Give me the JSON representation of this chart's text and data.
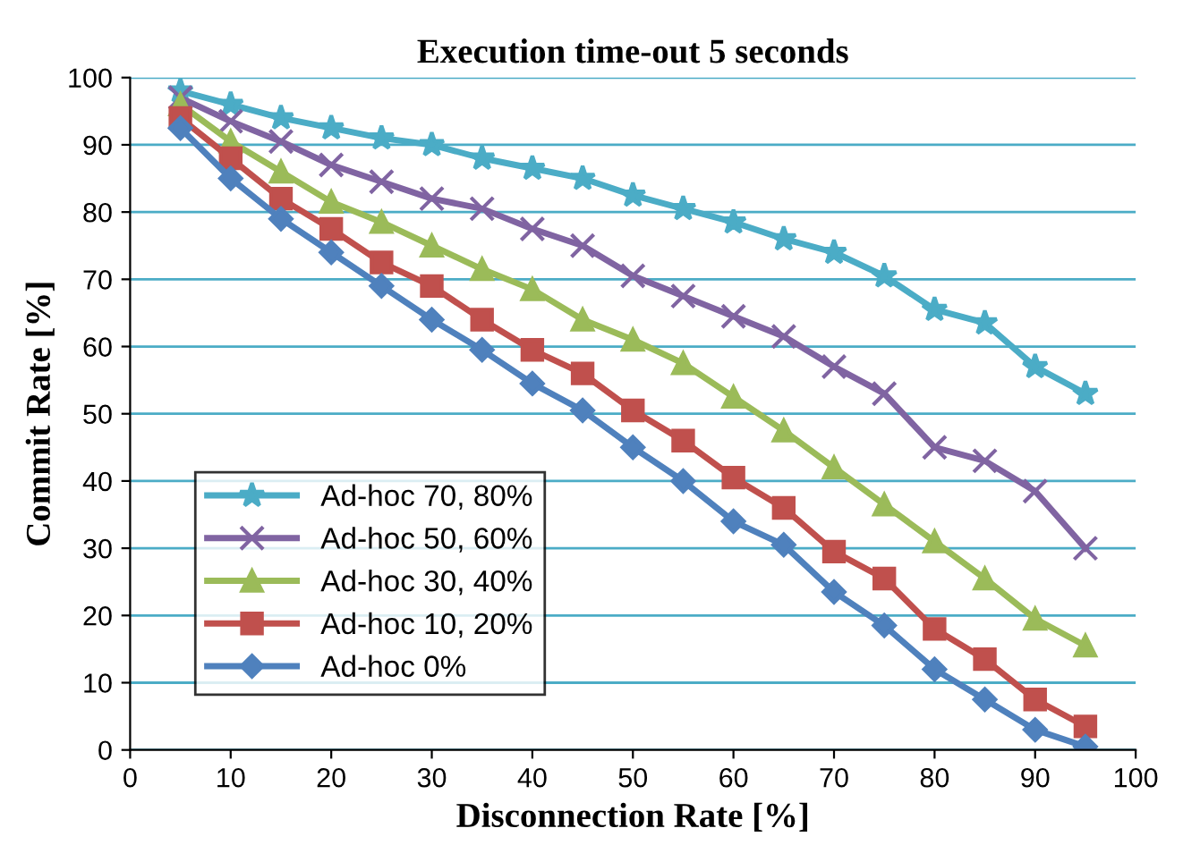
{
  "chart_data": {
    "type": "line",
    "title": "Execution time-out 5 seconds",
    "xlabel": "Disconnection Rate [%]",
    "ylabel": "Commit Rate [%]",
    "x": [
      5,
      10,
      15,
      20,
      25,
      30,
      35,
      40,
      45,
      50,
      55,
      60,
      65,
      70,
      75,
      80,
      85,
      90,
      95
    ],
    "series": [
      {
        "name": "Ad-hoc 70, 80%",
        "color": "#4bacc6",
        "marker": "star",
        "values": [
          98,
          96,
          94,
          92.5,
          91,
          90,
          88,
          86.5,
          85,
          82.5,
          80.5,
          78.5,
          76,
          74,
          70.5,
          65.5,
          63.5,
          57,
          53
        ]
      },
      {
        "name": "Ad-hoc 50, 60%",
        "color": "#8064a2",
        "marker": "cross",
        "values": [
          97,
          93.5,
          90.5,
          87,
          84.5,
          82,
          80.5,
          77.5,
          75,
          70.5,
          67.5,
          64.5,
          61.5,
          57,
          53,
          45,
          43,
          38.5,
          30
        ]
      },
      {
        "name": "Ad-hoc 30, 40%",
        "color": "#9bbb59",
        "marker": "triangle",
        "values": [
          96,
          90.5,
          86,
          81.5,
          78.5,
          75,
          71.5,
          68.5,
          64,
          61,
          57.5,
          52.5,
          47.5,
          42,
          36.5,
          31,
          25.5,
          19.5,
          15.5
        ]
      },
      {
        "name": "Ad-hoc 10, 20%",
        "color": "#c0504d",
        "marker": "square",
        "values": [
          94,
          88,
          82,
          77.5,
          72.5,
          69,
          64,
          59.5,
          56,
          50.5,
          46,
          40.5,
          36,
          29.5,
          25.5,
          18,
          13.5,
          7.5,
          3.5
        ]
      },
      {
        "name": "Ad-hoc 0%",
        "color": "#4f81bd",
        "marker": "diamond",
        "values": [
          92.5,
          85,
          79,
          74,
          69,
          64,
          59.5,
          54.5,
          50.5,
          45,
          40,
          34,
          30.5,
          23.5,
          18.5,
          12,
          7.5,
          3,
          0.5
        ]
      }
    ],
    "xlim": [
      0,
      100
    ],
    "xticks": [
      0,
      10,
      20,
      30,
      40,
      50,
      60,
      70,
      80,
      90,
      100
    ],
    "ylim": [
      0,
      100
    ],
    "yticks": [
      0,
      10,
      20,
      30,
      40,
      50,
      60,
      70,
      80,
      90,
      100
    ],
    "grid": "y",
    "legend": "bottom left",
    "line_style": "solid"
  }
}
